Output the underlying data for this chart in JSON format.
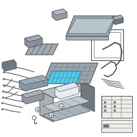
{
  "bg_color": "#ffffff",
  "line_color": "#444444",
  "highlight_color": "#5bc8e8",
  "highlight_color2": "#2299bb",
  "dark_color": "#333333",
  "mid_color": "#888888",
  "light_gray": "#d0d4d8",
  "mid_gray": "#a8b0b8",
  "dark_gray": "#707880",
  "very_light": "#e8ecf0"
}
